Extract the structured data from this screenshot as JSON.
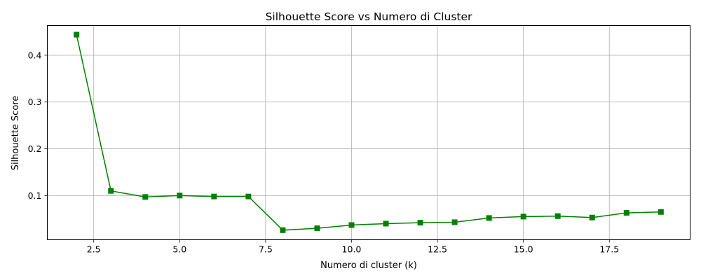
{
  "chart_data": {
    "type": "line",
    "title": "Silhouette Score vs Numero di Cluster",
    "xlabel": "Numero di cluster (k)",
    "ylabel": "Silhouette Score",
    "xlim": [
      1.15,
      19.85
    ],
    "ylim": [
      0.0055,
      0.4635
    ],
    "xticks": [
      2.5,
      5.0,
      7.5,
      10.0,
      12.5,
      15.0,
      17.5
    ],
    "xtick_labels": [
      "2.5",
      "5.0",
      "7.5",
      "10.0",
      "12.5",
      "15.0",
      "17.5"
    ],
    "yticks": [
      0.1,
      0.2,
      0.3,
      0.4
    ],
    "ytick_labels": [
      "0.1",
      "0.2",
      "0.3",
      "0.4"
    ],
    "grid": true,
    "marker": "square",
    "color": "#008000",
    "series": [
      {
        "x": [
          2,
          3,
          4,
          5,
          6,
          7,
          8,
          9,
          10,
          11,
          12,
          13,
          14,
          15,
          16,
          17,
          18,
          19
        ],
        "values": [
          0.444,
          0.11,
          0.097,
          0.1,
          0.098,
          0.098,
          0.026,
          0.03,
          0.037,
          0.04,
          0.042,
          0.043,
          0.052,
          0.055,
          0.056,
          0.053,
          0.063,
          0.065
        ]
      }
    ]
  }
}
